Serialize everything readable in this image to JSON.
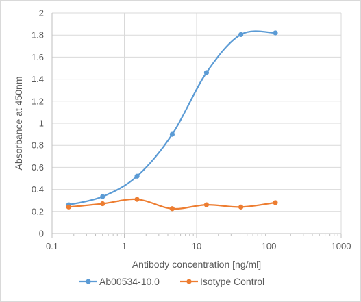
{
  "chart_data": {
    "type": "line",
    "title": "",
    "xlabel": "Antibody concentration [ng/ml]",
    "ylabel": "Absorbance at 450nm",
    "xscale": "log",
    "xlim": [
      0.1,
      1000
    ],
    "ylim": [
      0,
      2
    ],
    "x_ticks": [
      0.1,
      1,
      10,
      100,
      1000
    ],
    "x_tick_labels": [
      "0.1",
      "1",
      "10",
      "100",
      "1000"
    ],
    "y_ticks": [
      0,
      0.2,
      0.4,
      0.6,
      0.8,
      1,
      1.2,
      1.4,
      1.6,
      1.8,
      2
    ],
    "y_tick_labels": [
      "0",
      "0.2",
      "0.4",
      "0.6",
      "0.8",
      "1",
      "1.2",
      "1.4",
      "1.6",
      "1.8",
      "2"
    ],
    "grid": true,
    "legend": "bottom",
    "x": [
      0.17,
      0.5,
      1.5,
      4.6,
      13.7,
      41,
      123
    ],
    "series": [
      {
        "name": "Ab00534-10.0",
        "color": "#5b9bd5",
        "values": [
          0.26,
          0.335,
          0.52,
          0.9,
          1.46,
          1.805,
          1.82
        ]
      },
      {
        "name": "Isotype Control",
        "color": "#ed7d31",
        "values": [
          0.24,
          0.27,
          0.31,
          0.225,
          0.26,
          0.24,
          0.28
        ]
      }
    ]
  }
}
